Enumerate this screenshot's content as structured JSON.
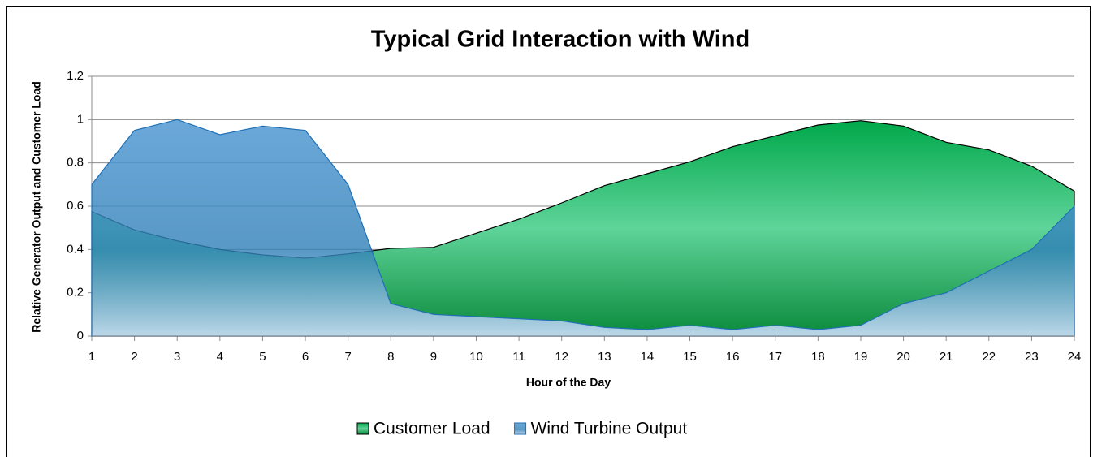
{
  "chart_data": {
    "type": "area",
    "title": "Typical Grid Interaction with Wind",
    "x_label": "Hour of the Day",
    "y_label": "Relative Generator Output and Customer Load",
    "x": [
      1,
      2,
      3,
      4,
      5,
      6,
      7,
      8,
      9,
      10,
      11,
      12,
      13,
      14,
      15,
      16,
      17,
      18,
      19,
      20,
      21,
      22,
      23,
      24
    ],
    "xlim": [
      1,
      24
    ],
    "xticks": [
      1,
      2,
      3,
      4,
      5,
      6,
      7,
      8,
      9,
      10,
      11,
      12,
      13,
      14,
      15,
      16,
      17,
      18,
      19,
      20,
      21,
      22,
      23,
      24
    ],
    "ylim": [
      0,
      1.2
    ],
    "yticks": [
      0,
      0.2,
      0.4,
      0.6,
      0.8,
      1,
      1.2
    ],
    "grid": true,
    "legend": "bottom",
    "series": [
      {
        "name": "Customer Load",
        "color": "#00b050",
        "values": [
          0.575,
          0.49,
          0.44,
          0.4,
          0.375,
          0.36,
          0.38,
          0.405,
          0.41,
          0.475,
          0.54,
          0.615,
          0.695,
          0.75,
          0.805,
          0.875,
          0.925,
          0.975,
          0.995,
          0.97,
          0.895,
          0.86,
          0.785,
          0.67
        ]
      },
      {
        "name": "Wind Turbine Output",
        "color": "#4a90d0",
        "values": [
          0.7,
          0.95,
          1.0,
          0.93,
          0.97,
          0.95,
          0.7,
          0.15,
          0.1,
          0.09,
          0.08,
          0.07,
          0.04,
          0.03,
          0.05,
          0.03,
          0.05,
          0.03,
          0.05,
          0.15,
          0.2,
          0.3,
          0.4,
          0.6
        ]
      }
    ]
  }
}
